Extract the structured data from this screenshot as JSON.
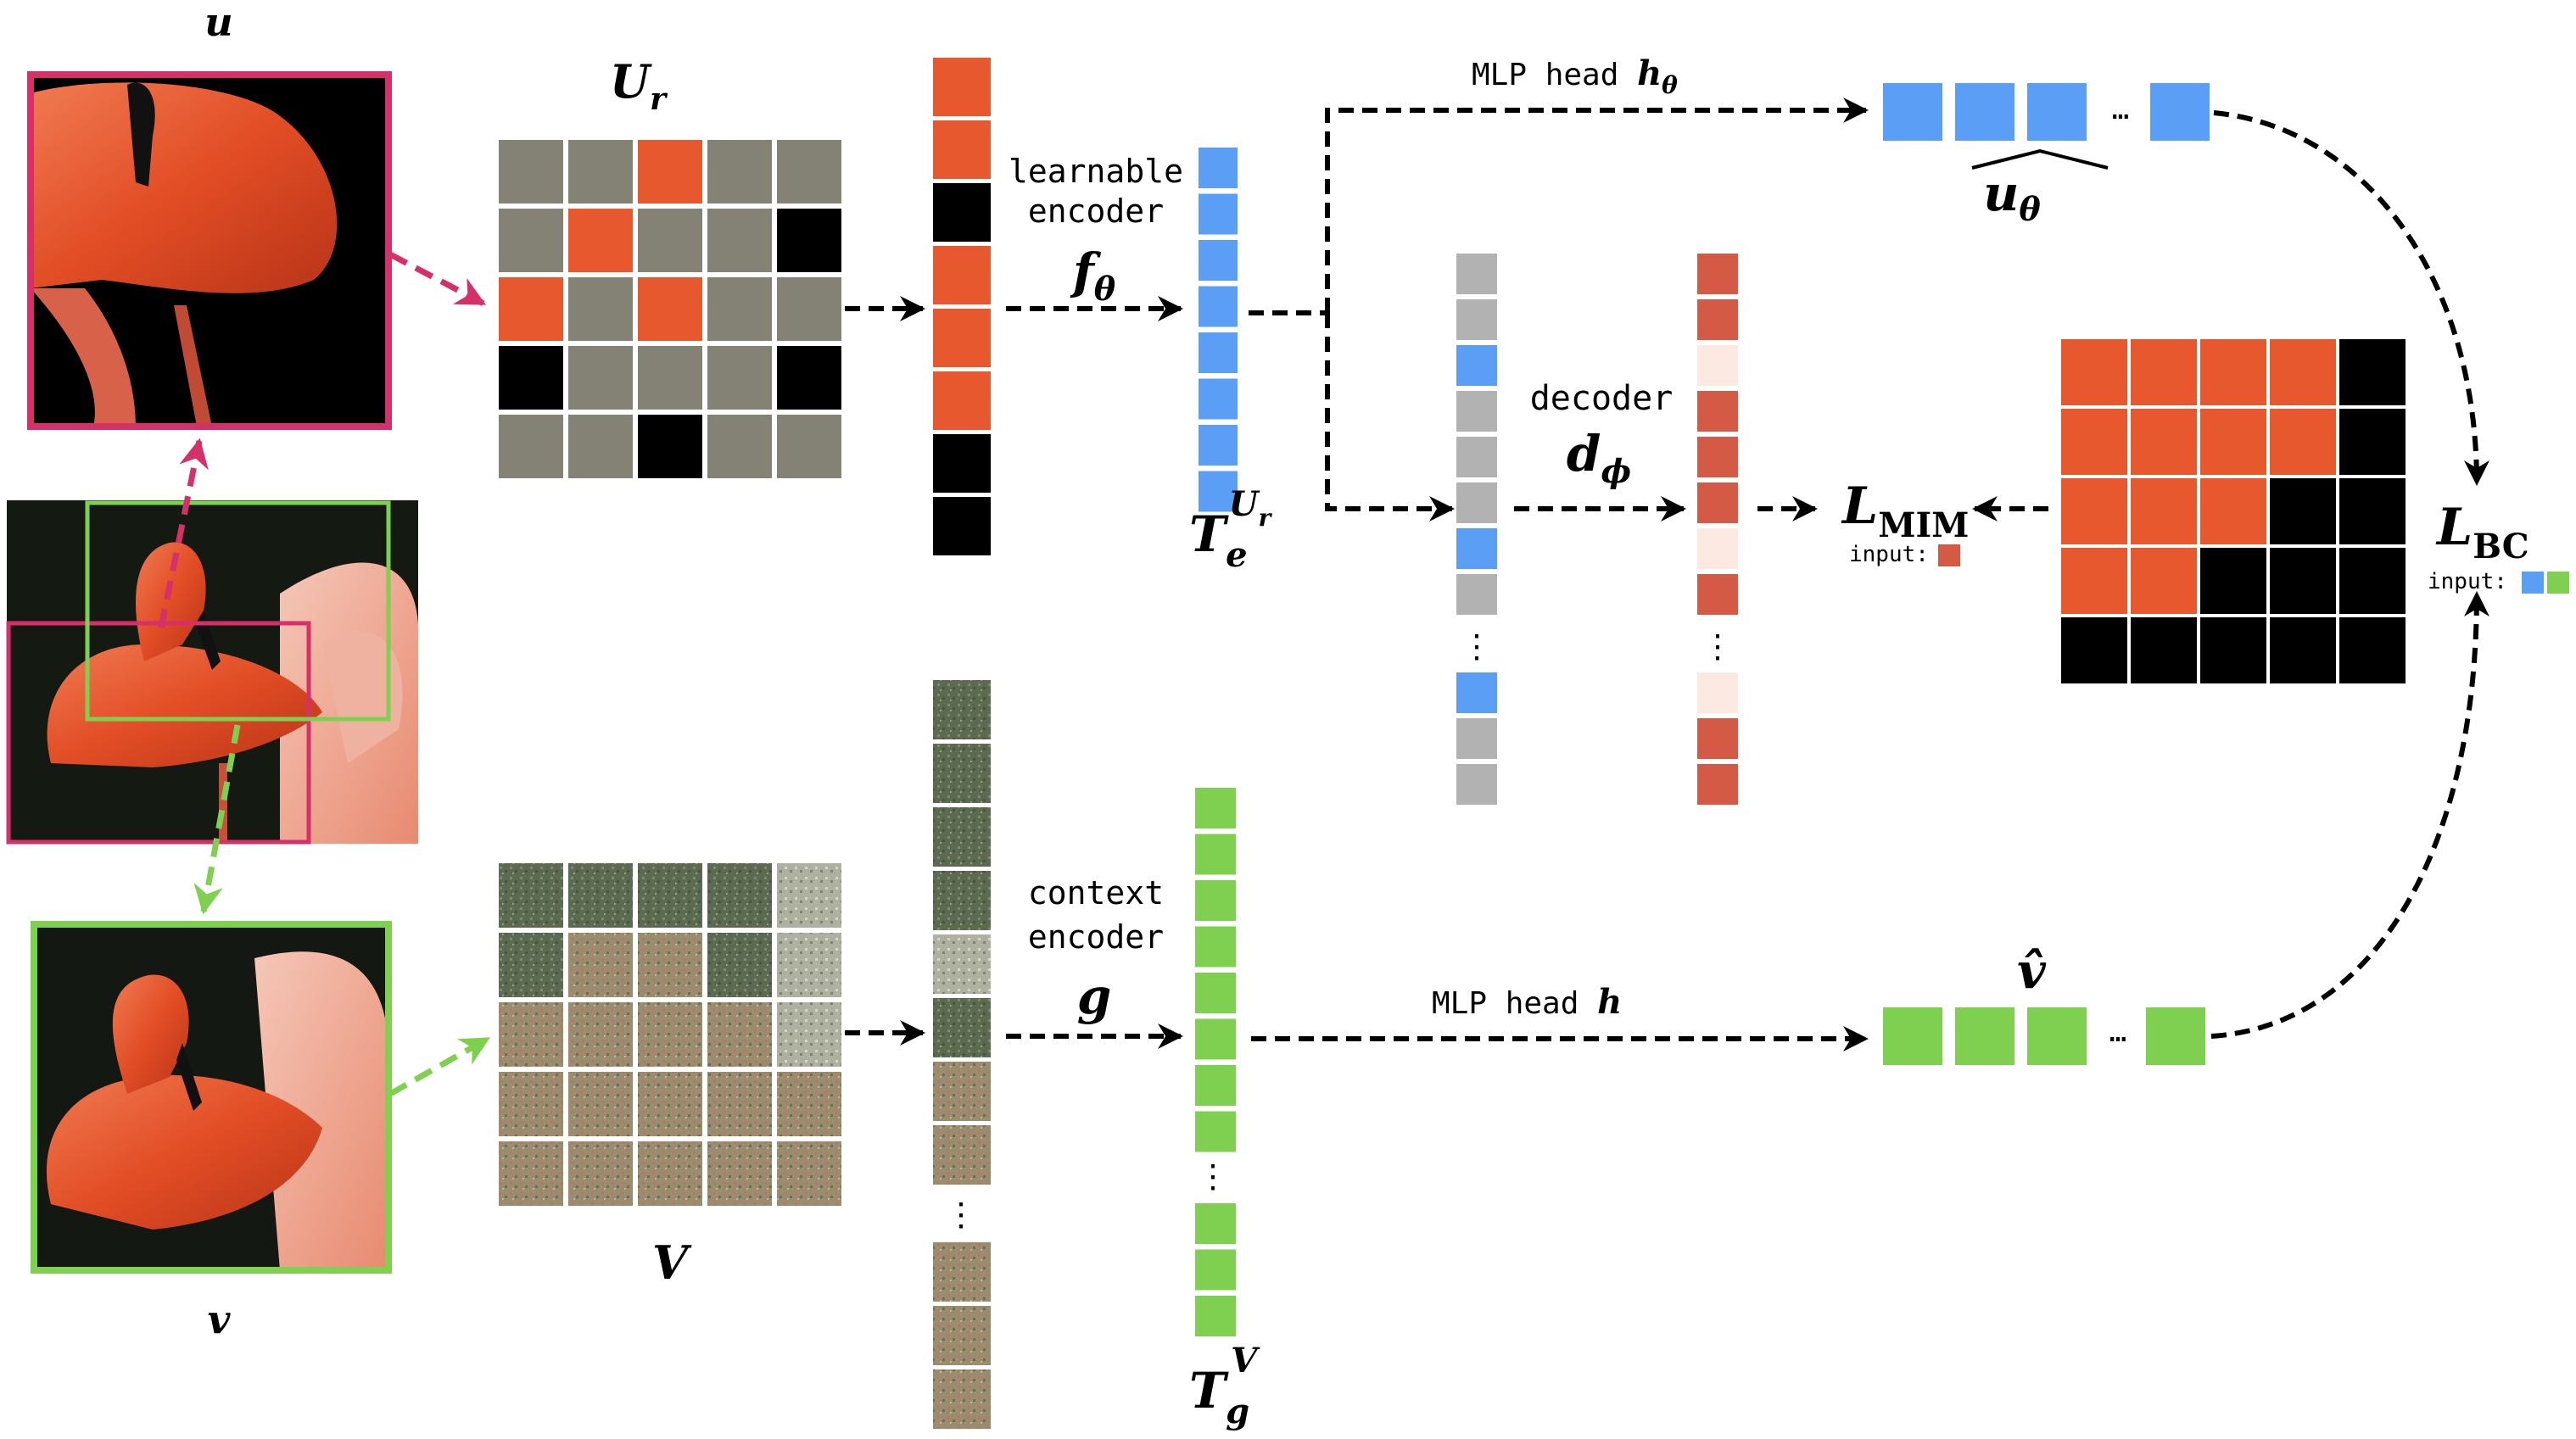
{
  "labels": {
    "u": "u",
    "v": "v",
    "Ur": "U",
    "Ur_sub": "r",
    "V": "V",
    "learnable_encoder_line1": "learnable",
    "learnable_encoder_line2": "encoder",
    "f_theta": "f",
    "f_theta_sub": "θ",
    "context_encoder_line1": "context",
    "context_encoder_line2": "encoder",
    "g": "g",
    "decoder": "decoder",
    "d_phi": "d",
    "d_phi_sub": "ϕ",
    "Te": "T",
    "Te_sub": "e",
    "Te_sup": "U",
    "Te_sup_sub": "r",
    "Tg": "T",
    "Tg_sub": "g",
    "Tg_sup": "V",
    "mlp_head_theta": "MLP head ",
    "mlp_head_theta_sym": "h",
    "mlp_head_theta_sub": "θ",
    "mlp_head": "MLP head ",
    "mlp_head_sym": "h",
    "u_hat": "u",
    "u_hat_sub": "θ",
    "v_hat": "v̂",
    "L_MIM": "L",
    "L_MIM_sub": "MIM",
    "L_BC": "L",
    "L_BC_sub": "BC",
    "input_label_mim": "input:",
    "input_label_bc": "input:",
    "ellipsis_h": "…",
    "ellipsis_v": "⋮"
  },
  "colors": {
    "magenta": "#d6306b",
    "green": "#7fd050",
    "blue": "#5b9ef5",
    "gray": "#b2b2b2",
    "red": "#d45a46",
    "pale_red": "#fbe9e2",
    "mask_gray": "#848274",
    "flamingo": "#e8582f",
    "dark": "#000000"
  }
}
